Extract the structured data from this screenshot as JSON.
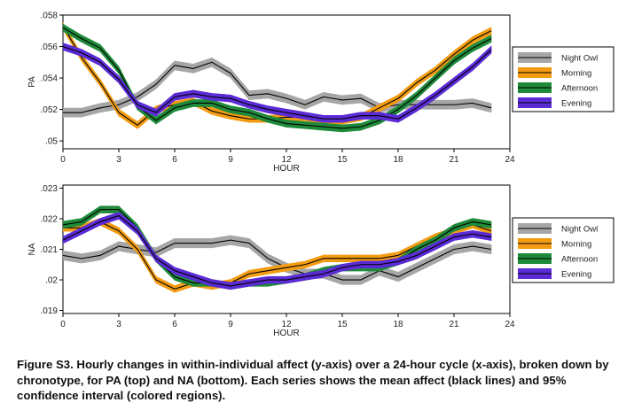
{
  "caption": "Figure S3. Hourly changes in within-individual affect (y-axis) over a 24-hour cycle (x-axis), broken down by chronotype, for PA (top) and NA (bottom). Each series shows the mean affect (black lines) and 95% confidence interval (colored regions).",
  "colors": {
    "Night Owl": "#a6a6a6",
    "Morning": "#f39c12",
    "Afternoon": "#1e8a3a",
    "Evening": "#5b2bd6"
  },
  "chart_data": [
    {
      "type": "line",
      "ylabel": "PA",
      "xlabel": "HOUR",
      "xlim": [
        0,
        24
      ],
      "ylim": [
        0.0495,
        0.058
      ],
      "xticks": [
        0,
        3,
        6,
        9,
        12,
        15,
        18,
        21,
        24
      ],
      "xtick_labels": [
        "0",
        "3",
        "6",
        "9",
        "12",
        "15",
        "18",
        "21",
        "24"
      ],
      "yticks": [
        0.05,
        0.052,
        0.054,
        0.056,
        0.058
      ],
      "ytick_labels": [
        ".05",
        ".052",
        ".054",
        ".056",
        ".058"
      ],
      "grid": false,
      "legend_position": "right",
      "x": [
        0,
        1,
        2,
        3,
        4,
        5,
        6,
        7,
        8,
        9,
        10,
        11,
        12,
        13,
        14,
        15,
        16,
        17,
        18,
        19,
        20,
        21,
        22,
        23
      ],
      "series": [
        {
          "name": "Night Owl",
          "ci": 0.00028,
          "values": [
            0.0518,
            0.0518,
            0.0521,
            0.0523,
            0.0528,
            0.0536,
            0.0548,
            0.0546,
            0.055,
            0.0543,
            0.0529,
            0.053,
            0.0527,
            0.0523,
            0.0528,
            0.0526,
            0.0527,
            0.0521,
            0.0523,
            0.0523,
            0.0523,
            0.0523,
            0.0524,
            0.0521
          ]
        },
        {
          "name": "Morning",
          "ci": 0.00022,
          "values": [
            0.0573,
            0.0553,
            0.0537,
            0.0518,
            0.051,
            0.052,
            0.0523,
            0.0525,
            0.0519,
            0.0516,
            0.0514,
            0.0514,
            0.0515,
            0.0515,
            0.0513,
            0.0513,
            0.0515,
            0.0521,
            0.0527,
            0.0537,
            0.0545,
            0.0555,
            0.0564,
            0.057
          ]
        },
        {
          "name": "Afternoon",
          "ci": 0.00022,
          "values": [
            0.0572,
            0.0565,
            0.0559,
            0.0545,
            0.0522,
            0.0513,
            0.0521,
            0.0524,
            0.0524,
            0.052,
            0.0518,
            0.0514,
            0.0511,
            0.051,
            0.0509,
            0.0508,
            0.0509,
            0.0513,
            0.052,
            0.0529,
            0.054,
            0.0551,
            0.0559,
            0.0565
          ]
        },
        {
          "name": "Evening",
          "ci": 0.00022,
          "values": [
            0.056,
            0.0556,
            0.055,
            0.0539,
            0.0523,
            0.0518,
            0.0528,
            0.053,
            0.0528,
            0.0527,
            0.0523,
            0.052,
            0.0518,
            0.0516,
            0.0514,
            0.0514,
            0.0516,
            0.0516,
            0.0514,
            0.0521,
            0.0529,
            0.0538,
            0.0547,
            0.0558
          ]
        }
      ]
    },
    {
      "type": "line",
      "ylabel": "NA",
      "xlabel": "HOUR",
      "xlim": [
        0,
        24
      ],
      "ylim": [
        0.0189,
        0.0231
      ],
      "xticks": [
        0,
        3,
        6,
        9,
        12,
        15,
        18,
        21,
        24
      ],
      "xtick_labels": [
        "0",
        "3",
        "6",
        "9",
        "12",
        "15",
        "18",
        "21",
        "24"
      ],
      "yticks": [
        0.019,
        0.02,
        0.021,
        0.022,
        0.023
      ],
      "ytick_labels": [
        ".019",
        ".02",
        ".021",
        ".022",
        ".023"
      ],
      "grid": false,
      "legend_position": "right",
      "x": [
        0,
        1,
        2,
        3,
        4,
        5,
        6,
        7,
        8,
        9,
        10,
        11,
        12,
        13,
        14,
        15,
        16,
        17,
        18,
        19,
        20,
        21,
        22,
        23
      ],
      "series": [
        {
          "name": "Night Owl",
          "ci": 0.00015,
          "values": [
            0.0208,
            0.0207,
            0.0208,
            0.0211,
            0.021,
            0.0209,
            0.0212,
            0.0212,
            0.0212,
            0.0213,
            0.0212,
            0.0207,
            0.0204,
            0.0202,
            0.0202,
            0.02,
            0.02,
            0.0203,
            0.0201,
            0.0204,
            0.0207,
            0.021,
            0.0211,
            0.021
          ]
        },
        {
          "name": "Morning",
          "ci": 0.00011,
          "values": [
            0.0217,
            0.0217,
            0.0219,
            0.0216,
            0.021,
            0.02,
            0.0197,
            0.0199,
            0.0198,
            0.0199,
            0.0202,
            0.0203,
            0.0204,
            0.0205,
            0.0207,
            0.0207,
            0.0207,
            0.0207,
            0.0208,
            0.0211,
            0.0214,
            0.0216,
            0.0218,
            0.0216
          ]
        },
        {
          "name": "Afternoon",
          "ci": 0.00011,
          "values": [
            0.0218,
            0.0219,
            0.0223,
            0.0223,
            0.0217,
            0.0207,
            0.0201,
            0.0199,
            0.0199,
            0.0198,
            0.0199,
            0.0199,
            0.02,
            0.0201,
            0.0203,
            0.0204,
            0.0204,
            0.0204,
            0.0206,
            0.021,
            0.0213,
            0.0217,
            0.0219,
            0.0218
          ]
        },
        {
          "name": "Evening",
          "ci": 0.00011,
          "values": [
            0.0213,
            0.0216,
            0.0219,
            0.0221,
            0.0216,
            0.0207,
            0.0203,
            0.0201,
            0.0199,
            0.0198,
            0.0199,
            0.02,
            0.02,
            0.0201,
            0.0202,
            0.0204,
            0.0205,
            0.0205,
            0.0206,
            0.0208,
            0.0211,
            0.0214,
            0.0215,
            0.0214
          ]
        }
      ]
    }
  ]
}
